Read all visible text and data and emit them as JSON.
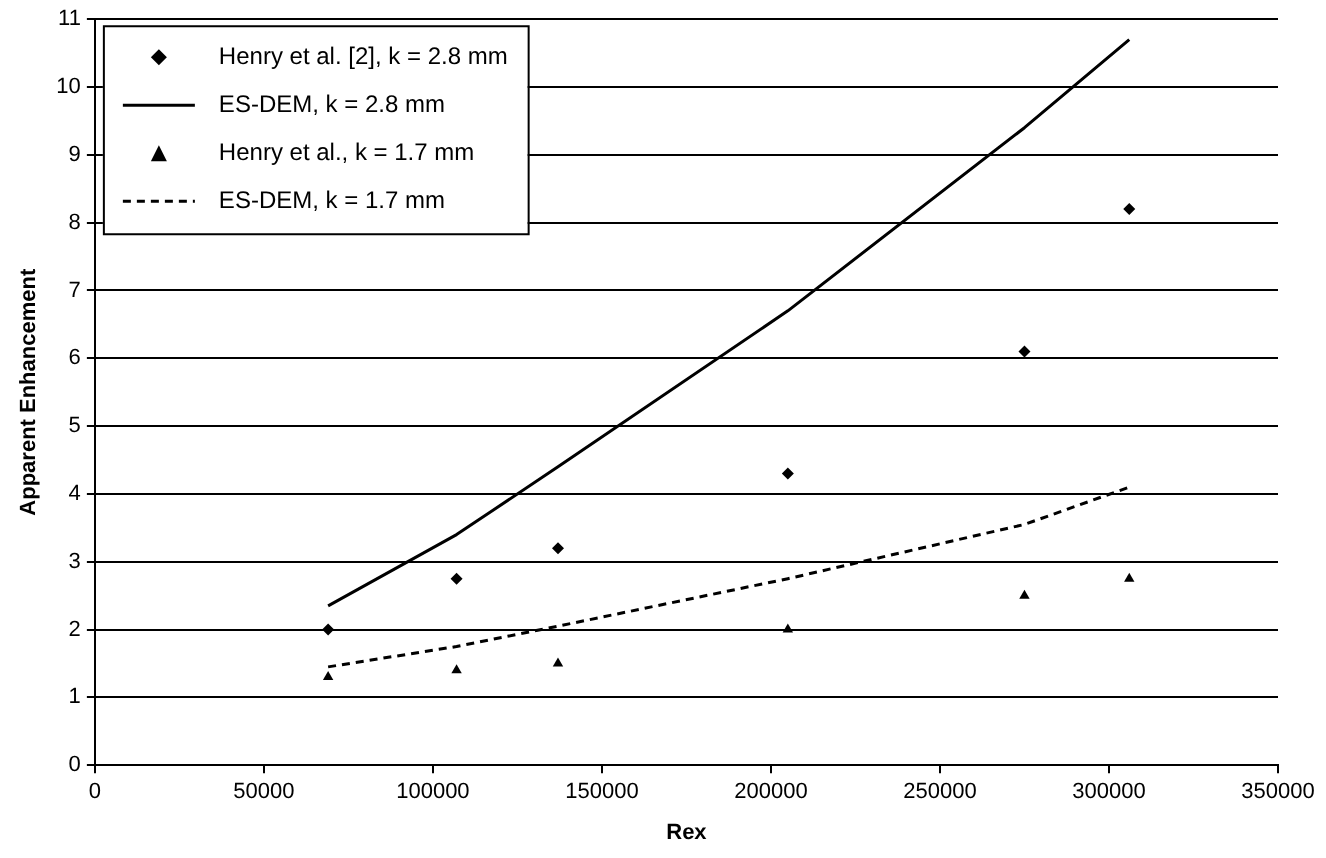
{
  "chart_data": {
    "type": "scatter",
    "xlabel": "Rex",
    "ylabel": "Apparent Enhancement",
    "xlim": [
      0,
      350000
    ],
    "xticks": [
      0,
      50000,
      100000,
      150000,
      200000,
      250000,
      300000,
      350000
    ],
    "ylim": [
      0,
      11
    ],
    "yticks": [
      0,
      1,
      2,
      3,
      4,
      5,
      6,
      7,
      8,
      9,
      10,
      11
    ],
    "grid": "y",
    "legend": "top left",
    "series": [
      {
        "name": "Henry et al. [2], k = 2.8 mm",
        "type": "scatter",
        "marker": "diamond",
        "color": "#000000",
        "x": [
          69000,
          107000,
          137000,
          205000,
          275000,
          306000
        ],
        "values": [
          2.0,
          2.75,
          3.2,
          4.3,
          6.1,
          8.2
        ]
      },
      {
        "name": "ES-DEM, k = 2.8 mm",
        "type": "line",
        "marker": "none",
        "line_style": "solid",
        "color": "#000000",
        "x": [
          69000,
          107000,
          137000,
          205000,
          275000,
          306000
        ],
        "values": [
          2.35,
          3.4,
          4.4,
          6.7,
          9.4,
          10.7
        ]
      },
      {
        "name": "Henry et al., k = 1.7 mm",
        "type": "scatter",
        "marker": "triangle",
        "color": "#000000",
        "x": [
          69000,
          107000,
          137000,
          205000,
          275000,
          306000
        ],
        "values": [
          1.3,
          1.4,
          1.5,
          2.0,
          2.5,
          2.75
        ]
      },
      {
        "name": "ES-DEM, k = 1.7 mm",
        "type": "line",
        "marker": "none",
        "line_style": "dashed",
        "color": "#000000",
        "x": [
          69000,
          107000,
          137000,
          205000,
          275000,
          306000
        ],
        "values": [
          1.45,
          1.75,
          2.05,
          2.75,
          3.55,
          4.1
        ]
      }
    ]
  }
}
